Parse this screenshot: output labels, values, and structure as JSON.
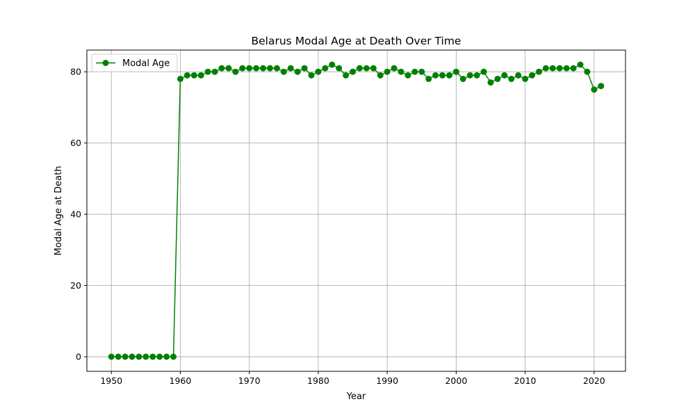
{
  "colors": {
    "series": "#008000",
    "grid": "#b0b0b0",
    "axes": "#000000",
    "background": "#ffffff",
    "legend_border": "#cccccc"
  },
  "chart_data": {
    "type": "line",
    "title": "Belarus Modal Age at Death Over Time",
    "xlabel": "Year",
    "ylabel": "Modal Age at Death",
    "xlim": [
      1946.45,
      2024.55
    ],
    "ylim": [
      -4.1,
      86.1
    ],
    "x_ticks": [
      1950,
      1960,
      1970,
      1980,
      1990,
      2000,
      2010,
      2020
    ],
    "y_ticks": [
      0,
      20,
      40,
      60,
      80
    ],
    "grid": true,
    "legend_position": "upper-left",
    "marker": "circle",
    "series": [
      {
        "name": "Modal Age",
        "x": [
          1950,
          1951,
          1952,
          1953,
          1954,
          1955,
          1956,
          1957,
          1958,
          1959,
          1960,
          1961,
          1962,
          1963,
          1964,
          1965,
          1966,
          1967,
          1968,
          1969,
          1970,
          1971,
          1972,
          1973,
          1974,
          1975,
          1976,
          1977,
          1978,
          1979,
          1980,
          1981,
          1982,
          1983,
          1984,
          1985,
          1986,
          1987,
          1988,
          1989,
          1990,
          1991,
          1992,
          1993,
          1994,
          1995,
          1996,
          1997,
          1998,
          1999,
          2000,
          2001,
          2002,
          2003,
          2004,
          2005,
          2006,
          2007,
          2008,
          2009,
          2010,
          2011,
          2012,
          2013,
          2014,
          2015,
          2016,
          2017,
          2018,
          2019,
          2020,
          2021
        ],
        "y": [
          0,
          0,
          0,
          0,
          0,
          0,
          0,
          0,
          0,
          0,
          78,
          79,
          79,
          79,
          80,
          80,
          81,
          81,
          80,
          81,
          81,
          81,
          81,
          81,
          81,
          80,
          81,
          80,
          81,
          79,
          80,
          81,
          82,
          81,
          79,
          80,
          81,
          81,
          81,
          79,
          80,
          81,
          80,
          79,
          80,
          80,
          78,
          79,
          79,
          79,
          80,
          78,
          79,
          79,
          80,
          77,
          78,
          79,
          78,
          79,
          78,
          79,
          80,
          81,
          81,
          81,
          81,
          81,
          82,
          80,
          75,
          76
        ]
      }
    ]
  }
}
